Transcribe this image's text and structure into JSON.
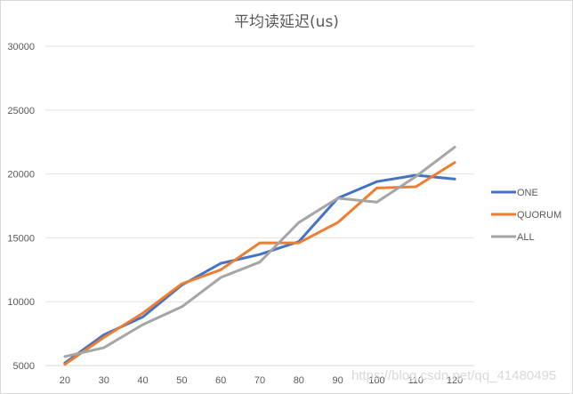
{
  "chart_data": {
    "type": "line",
    "title": "平均读延迟(us)",
    "xlabel": "",
    "ylabel": "",
    "categories": [
      20,
      30,
      40,
      50,
      60,
      70,
      80,
      90,
      100,
      110,
      120
    ],
    "series": [
      {
        "name": "ONE",
        "color": "#4472c4",
        "values": [
          5200,
          7400,
          8800,
          11300,
          13000,
          13700,
          14700,
          18100,
          19400,
          19900,
          19600
        ]
      },
      {
        "name": "QUORUM",
        "color": "#ed7d31",
        "values": [
          5100,
          7200,
          9100,
          11400,
          12500,
          14600,
          14600,
          16200,
          18900,
          19000,
          20900
        ]
      },
      {
        "name": "ALL",
        "color": "#a5a5a5",
        "values": [
          5700,
          6400,
          8200,
          9600,
          11900,
          13100,
          16200,
          18100,
          17800,
          19800,
          22100
        ]
      }
    ],
    "yticks": [
      5000,
      10000,
      15000,
      20000,
      25000,
      30000
    ],
    "ylim": [
      5000,
      30000
    ],
    "grid": true,
    "legend_position": "right"
  },
  "watermark": "https://blog.csdn.net/qq_41480495"
}
